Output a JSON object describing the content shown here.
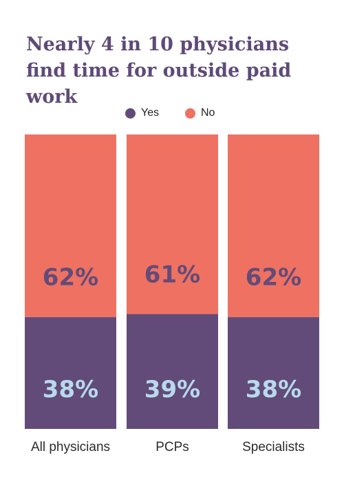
{
  "chart_data": {
    "type": "bar",
    "stacked": true,
    "title": "Nearly 4 in 10 physicians find time for outside paid work",
    "categories": [
      "All physicians",
      "PCPs",
      "Specialists"
    ],
    "series": [
      {
        "name": "Yes",
        "values": [
          38,
          39,
          38
        ],
        "color": "#624b78",
        "label_color": "#b8d9ee"
      },
      {
        "name": "No",
        "values": [
          62,
          61,
          62
        ],
        "color": "#ef7162",
        "label_color": "#624b78"
      }
    ],
    "value_suffix": "%",
    "ylim": [
      0,
      100
    ],
    "legend_position": "top-center",
    "grid": false
  }
}
